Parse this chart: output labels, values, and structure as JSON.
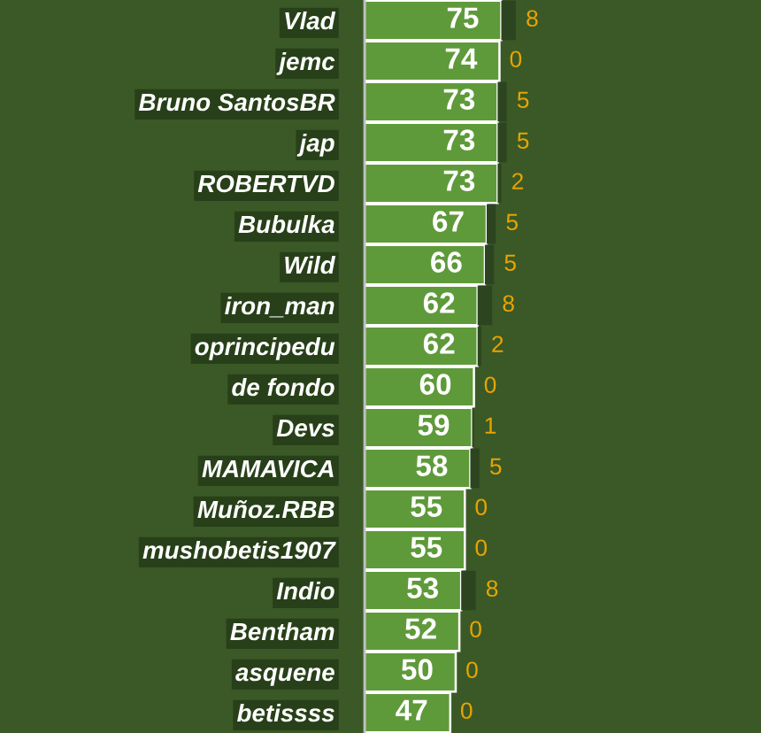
{
  "chart_data": {
    "type": "bar",
    "orientation": "horizontal",
    "stacked": true,
    "data_labels": true,
    "categories": [
      "Vlad",
      "jemc",
      "Bruno SantosBR",
      "jap",
      "ROBERTVD",
      "Bubulka",
      "Wild",
      "iron_man",
      "oprincipedu",
      "de fondo",
      "Devs",
      "MAMAVICA",
      "Muñoz.RBB",
      "mushobetis1907",
      "Indio",
      "Bentham",
      "asquene",
      "betissss"
    ],
    "series": [
      {
        "color": "#5f9a3a",
        "values": [
          75,
          74,
          73,
          73,
          73,
          67,
          66,
          62,
          62,
          60,
          59,
          58,
          55,
          55,
          53,
          52,
          50,
          47
        ]
      },
      {
        "color": "#2c4520",
        "values": [
          8,
          0,
          5,
          5,
          2,
          5,
          5,
          8,
          2,
          0,
          1,
          5,
          0,
          0,
          8,
          0,
          0,
          0
        ]
      }
    ]
  }
}
